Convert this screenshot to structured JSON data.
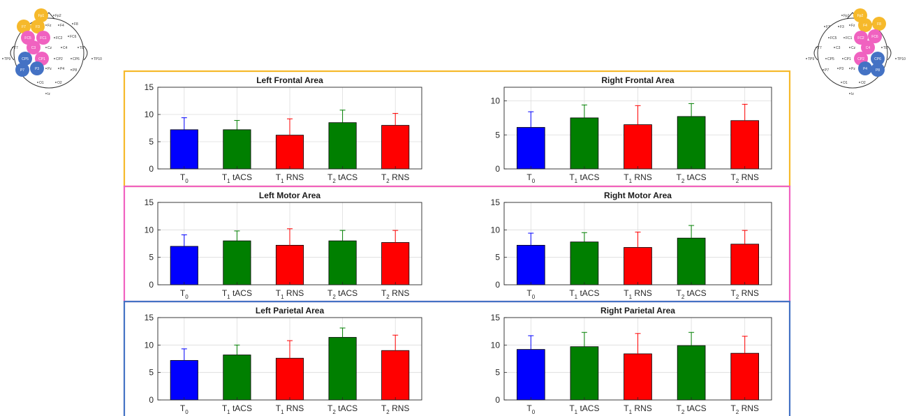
{
  "colors": {
    "frontal": "#f6b92b",
    "motor": "#f062c0",
    "parietal": "#4472c4",
    "T0": "#0000ff",
    "tACS": "#007f00",
    "RNS": "#ff0000"
  },
  "categories": [
    {
      "main": "T",
      "sub": "0",
      "suffix": "",
      "color_key": "T0"
    },
    {
      "main": "T",
      "sub": "1",
      "suffix": " tACS",
      "color_key": "tACS"
    },
    {
      "main": "T",
      "sub": "1",
      "suffix": " RNS",
      "color_key": "RNS"
    },
    {
      "main": "T",
      "sub": "2",
      "suffix": " tACS",
      "color_key": "tACS"
    },
    {
      "main": "T",
      "sub": "2",
      "suffix": " RNS",
      "color_key": "RNS"
    }
  ],
  "chart_data": [
    {
      "type": "bar",
      "title": "Left Frontal Area",
      "group": "frontal",
      "ylim": [
        0,
        15
      ],
      "yticks": [
        0,
        5,
        10,
        15
      ],
      "values": [
        7.2,
        7.2,
        6.2,
        8.5,
        8.0
      ],
      "errors": [
        2.2,
        1.7,
        3.0,
        2.3,
        2.2
      ],
      "grid": true
    },
    {
      "type": "bar",
      "title": "Right Frontal Area",
      "group": "frontal",
      "ylim": [
        0,
        12
      ],
      "yticks": [
        0,
        5,
        10
      ],
      "values": [
        6.1,
        7.5,
        6.5,
        7.7,
        7.1
      ],
      "errors": [
        2.3,
        1.9,
        2.8,
        1.9,
        2.4
      ],
      "grid": true
    },
    {
      "type": "bar",
      "title": "Left Motor Area",
      "group": "motor",
      "ylim": [
        0,
        15
      ],
      "yticks": [
        0,
        5,
        10,
        15
      ],
      "values": [
        7.0,
        8.0,
        7.2,
        8.0,
        7.7
      ],
      "errors": [
        2.1,
        1.8,
        3.0,
        1.9,
        2.2
      ],
      "grid": true
    },
    {
      "type": "bar",
      "title": "Right Motor Area",
      "group": "motor",
      "ylim": [
        0,
        15
      ],
      "yticks": [
        0,
        5,
        10,
        15
      ],
      "values": [
        7.2,
        7.8,
        6.8,
        8.5,
        7.4
      ],
      "errors": [
        2.2,
        1.7,
        2.8,
        2.3,
        2.5
      ],
      "grid": true
    },
    {
      "type": "bar",
      "title": "Left Parietal Area",
      "group": "parietal",
      "ylim": [
        0,
        15
      ],
      "yticks": [
        0,
        5,
        10,
        15
      ],
      "values": [
        7.2,
        8.2,
        7.6,
        11.4,
        9.0
      ],
      "errors": [
        2.1,
        1.8,
        3.2,
        1.7,
        2.8
      ],
      "grid": true
    },
    {
      "type": "bar",
      "title": "Right Parietal Area",
      "group": "parietal",
      "ylim": [
        0,
        15
      ],
      "yticks": [
        0,
        5,
        10,
        15
      ],
      "values": [
        9.2,
        9.7,
        8.4,
        9.9,
        8.5
      ],
      "errors": [
        2.5,
        2.6,
        3.7,
        2.4,
        3.1
      ],
      "grid": true
    }
  ],
  "head_maps": {
    "left": {
      "electrodes": [
        {
          "label": "Fp1",
          "group": "frontal"
        },
        {
          "label": "Fp2",
          "group": ""
        },
        {
          "label": "F7",
          "group": "frontal"
        },
        {
          "label": "F3",
          "group": "frontal"
        },
        {
          "label": "Fz",
          "group": ""
        },
        {
          "label": "F4",
          "group": ""
        },
        {
          "label": "F8",
          "group": ""
        },
        {
          "label": "FC5",
          "group": "motor"
        },
        {
          "label": "FC1",
          "group": "motor"
        },
        {
          "label": "FC2",
          "group": ""
        },
        {
          "label": "FC6",
          "group": ""
        },
        {
          "label": "T7",
          "group": ""
        },
        {
          "label": "C3",
          "group": "motor"
        },
        {
          "label": "Cz",
          "group": ""
        },
        {
          "label": "C4",
          "group": ""
        },
        {
          "label": "T8",
          "group": ""
        },
        {
          "label": "TP9",
          "group": ""
        },
        {
          "label": "CP5",
          "group": "parietal"
        },
        {
          "label": "CP1",
          "group": "motor"
        },
        {
          "label": "CP2",
          "group": ""
        },
        {
          "label": "CP6",
          "group": ""
        },
        {
          "label": "TP10",
          "group": ""
        },
        {
          "label": "P7",
          "group": "parietal"
        },
        {
          "label": "P3",
          "group": "parietal"
        },
        {
          "label": "Pz",
          "group": ""
        },
        {
          "label": "P4",
          "group": ""
        },
        {
          "label": "P8",
          "group": ""
        },
        {
          "label": "O1",
          "group": ""
        },
        {
          "label": "O2",
          "group": ""
        },
        {
          "label": "Iz",
          "group": ""
        }
      ]
    },
    "right": {
      "electrodes": [
        {
          "label": "Fp1",
          "group": ""
        },
        {
          "label": "Fp2",
          "group": "frontal"
        },
        {
          "label": "F7",
          "group": ""
        },
        {
          "label": "F3",
          "group": ""
        },
        {
          "label": "Fz",
          "group": ""
        },
        {
          "label": "F4",
          "group": "frontal"
        },
        {
          "label": "F8",
          "group": "frontal"
        },
        {
          "label": "FC5",
          "group": ""
        },
        {
          "label": "FC1",
          "group": ""
        },
        {
          "label": "FC2",
          "group": "motor"
        },
        {
          "label": "FC6",
          "group": "motor"
        },
        {
          "label": "T7",
          "group": ""
        },
        {
          "label": "C3",
          "group": ""
        },
        {
          "label": "Cz",
          "group": ""
        },
        {
          "label": "C4",
          "group": "motor"
        },
        {
          "label": "T8",
          "group": ""
        },
        {
          "label": "TP9",
          "group": ""
        },
        {
          "label": "CP5",
          "group": ""
        },
        {
          "label": "CP1",
          "group": ""
        },
        {
          "label": "CP2",
          "group": "motor"
        },
        {
          "label": "CP6",
          "group": "parietal"
        },
        {
          "label": "TP10",
          "group": ""
        },
        {
          "label": "P7",
          "group": ""
        },
        {
          "label": "P3",
          "group": ""
        },
        {
          "label": "Pz",
          "group": ""
        },
        {
          "label": "P4",
          "group": "parietal"
        },
        {
          "label": "P8",
          "group": "parietal"
        },
        {
          "label": "O1",
          "group": ""
        },
        {
          "label": "O2",
          "group": ""
        },
        {
          "label": "Iz",
          "group": ""
        }
      ]
    }
  }
}
